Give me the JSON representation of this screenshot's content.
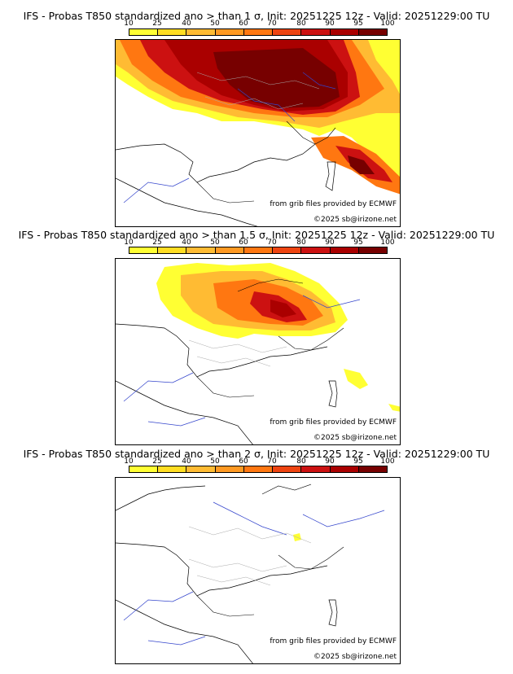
{
  "colorbar": {
    "ticks": [
      "10",
      "25",
      "40",
      "50",
      "60",
      "70",
      "80",
      "90",
      "95",
      "100"
    ],
    "colors": [
      "#ffff33",
      "#ffdd22",
      "#ffbb33",
      "#ff9922",
      "#ff7711",
      "#ee4411",
      "#cc1111",
      "#aa0000",
      "#770000"
    ]
  },
  "credits": {
    "source": "from grib files provided by ECMWF",
    "copyright": "©2025 sb@irizone.net"
  },
  "panels": [
    {
      "title": "IFS - Probas T850  standardized ano > than 1 σ, Init: 20251225 12z - Valid: 20251229:00 TU"
    },
    {
      "title": "IFS - Probas T850  standardized ano > than 1.5 σ, Init: 20251225 12z - Valid: 20251229:00 TU"
    },
    {
      "title": "IFS - Probas T850  standardized ano > than 2 σ, Init: 20251225 12z - Valid: 20251229:00 TU"
    }
  ]
}
